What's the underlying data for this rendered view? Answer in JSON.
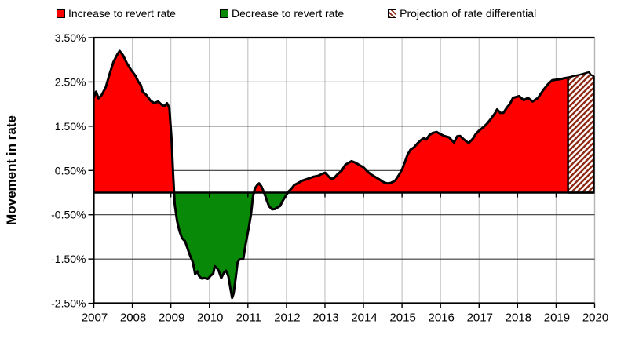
{
  "chart_data": {
    "type": "area",
    "title": "",
    "xlabel": "",
    "ylabel": "Movement in rate",
    "ylim": [
      -2.5,
      3.5
    ],
    "xlim": [
      2007,
      2020
    ],
    "grid": true,
    "legend_position": "top",
    "y_ticks": [
      {
        "value": 3.5,
        "label": "3.50%"
      },
      {
        "value": 2.5,
        "label": "2.50%"
      },
      {
        "value": 1.5,
        "label": "1.50%"
      },
      {
        "value": 0.5,
        "label": "0.50%"
      },
      {
        "value": -0.5,
        "label": "-0.50%"
      },
      {
        "value": -1.5,
        "label": "-1.50%"
      },
      {
        "value": -2.5,
        "label": "-2.50%"
      }
    ],
    "x_ticks": [
      "2007",
      "2008",
      "2009",
      "2010",
      "2011",
      "2012",
      "2013",
      "2014",
      "2015",
      "2016",
      "2017",
      "2018",
      "2019",
      "2020"
    ],
    "legend": [
      {
        "label": "Increase to revert rate",
        "swatch": "solid",
        "color": "#FF0000"
      },
      {
        "label": "Decrease to revert rate",
        "swatch": "solid",
        "color": "#088A08"
      },
      {
        "label": "Projection of rate differential",
        "swatch": "hatch",
        "color": "#8F2A15"
      }
    ],
    "colors": {
      "increase": "#FF0000",
      "decrease": "#088A08",
      "projection_stripe": "#8F2A15",
      "line": "#000000",
      "h_grid": "#3a3a3a",
      "v_grid": "#c6c6c6"
    },
    "series": [
      {
        "name": "Rate differential (actual)",
        "points": [
          [
            2007.0,
            2.15
          ],
          [
            2007.06,
            2.28
          ],
          [
            2007.12,
            2.13
          ],
          [
            2007.2,
            2.2
          ],
          [
            2007.31,
            2.38
          ],
          [
            2007.41,
            2.68
          ],
          [
            2007.51,
            2.95
          ],
          [
            2007.61,
            3.12
          ],
          [
            2007.67,
            3.2
          ],
          [
            2007.76,
            3.1
          ],
          [
            2007.86,
            2.92
          ],
          [
            2007.96,
            2.78
          ],
          [
            2008.08,
            2.64
          ],
          [
            2008.16,
            2.5
          ],
          [
            2008.22,
            2.43
          ],
          [
            2008.27,
            2.28
          ],
          [
            2008.37,
            2.2
          ],
          [
            2008.47,
            2.08
          ],
          [
            2008.57,
            2.02
          ],
          [
            2008.67,
            2.06
          ],
          [
            2008.78,
            1.97
          ],
          [
            2008.84,
            1.96
          ],
          [
            2008.9,
            2.02
          ],
          [
            2008.96,
            1.92
          ],
          [
            2009.02,
            1.2
          ],
          [
            2009.06,
            0.4
          ],
          [
            2009.1,
            -0.27
          ],
          [
            2009.16,
            -0.63
          ],
          [
            2009.22,
            -0.86
          ],
          [
            2009.29,
            -1.03
          ],
          [
            2009.37,
            -1.1
          ],
          [
            2009.45,
            -1.3
          ],
          [
            2009.51,
            -1.45
          ],
          [
            2009.57,
            -1.57
          ],
          [
            2009.63,
            -1.84
          ],
          [
            2009.69,
            -1.78
          ],
          [
            2009.73,
            -1.88
          ],
          [
            2009.8,
            -1.94
          ],
          [
            2009.88,
            -1.93
          ],
          [
            2009.96,
            -1.95
          ],
          [
            2010.04,
            -1.87
          ],
          [
            2010.1,
            -1.83
          ],
          [
            2010.14,
            -1.66
          ],
          [
            2010.2,
            -1.71
          ],
          [
            2010.24,
            -1.76
          ],
          [
            2010.31,
            -1.93
          ],
          [
            2010.37,
            -1.82
          ],
          [
            2010.43,
            -1.76
          ],
          [
            2010.49,
            -1.88
          ],
          [
            2010.55,
            -2.18
          ],
          [
            2010.59,
            -2.38
          ],
          [
            2010.63,
            -2.28
          ],
          [
            2010.69,
            -1.88
          ],
          [
            2010.73,
            -1.58
          ],
          [
            2010.78,
            -1.51
          ],
          [
            2010.88,
            -1.5
          ],
          [
            2010.94,
            -1.17
          ],
          [
            2011.02,
            -0.8
          ],
          [
            2011.08,
            -0.5
          ],
          [
            2011.13,
            -0.1
          ],
          [
            2011.18,
            0.09
          ],
          [
            2011.24,
            0.17
          ],
          [
            2011.29,
            0.21
          ],
          [
            2011.35,
            0.14
          ],
          [
            2011.43,
            -0.02
          ],
          [
            2011.49,
            -0.18
          ],
          [
            2011.55,
            -0.31
          ],
          [
            2011.63,
            -0.38
          ],
          [
            2011.7,
            -0.37
          ],
          [
            2011.76,
            -0.34
          ],
          [
            2011.84,
            -0.3
          ],
          [
            2011.9,
            -0.19
          ],
          [
            2011.98,
            -0.08
          ],
          [
            2012.06,
            0.03
          ],
          [
            2012.14,
            0.1
          ],
          [
            2012.2,
            0.17
          ],
          [
            2012.31,
            0.22
          ],
          [
            2012.41,
            0.27
          ],
          [
            2012.51,
            0.3
          ],
          [
            2012.61,
            0.33
          ],
          [
            2012.71,
            0.36
          ],
          [
            2012.82,
            0.38
          ],
          [
            2012.92,
            0.42
          ],
          [
            2013.0,
            0.45
          ],
          [
            2013.08,
            0.38
          ],
          [
            2013.16,
            0.31
          ],
          [
            2013.24,
            0.33
          ],
          [
            2013.33,
            0.42
          ],
          [
            2013.43,
            0.49
          ],
          [
            2013.53,
            0.63
          ],
          [
            2013.63,
            0.68
          ],
          [
            2013.69,
            0.71
          ],
          [
            2013.78,
            0.68
          ],
          [
            2013.88,
            0.63
          ],
          [
            2014.0,
            0.57
          ],
          [
            2014.1,
            0.48
          ],
          [
            2014.2,
            0.41
          ],
          [
            2014.31,
            0.35
          ],
          [
            2014.41,
            0.3
          ],
          [
            2014.51,
            0.24
          ],
          [
            2014.61,
            0.21
          ],
          [
            2014.71,
            0.22
          ],
          [
            2014.82,
            0.27
          ],
          [
            2014.92,
            0.4
          ],
          [
            2015.0,
            0.52
          ],
          [
            2015.08,
            0.7
          ],
          [
            2015.14,
            0.85
          ],
          [
            2015.22,
            0.97
          ],
          [
            2015.31,
            1.02
          ],
          [
            2015.41,
            1.12
          ],
          [
            2015.51,
            1.2
          ],
          [
            2015.57,
            1.23
          ],
          [
            2015.63,
            1.2
          ],
          [
            2015.71,
            1.3
          ],
          [
            2015.8,
            1.35
          ],
          [
            2015.9,
            1.37
          ],
          [
            2016.0,
            1.32
          ],
          [
            2016.1,
            1.28
          ],
          [
            2016.22,
            1.25
          ],
          [
            2016.35,
            1.13
          ],
          [
            2016.43,
            1.27
          ],
          [
            2016.51,
            1.28
          ],
          [
            2016.61,
            1.2
          ],
          [
            2016.73,
            1.12
          ],
          [
            2016.84,
            1.22
          ],
          [
            2016.92,
            1.33
          ],
          [
            2017.0,
            1.4
          ],
          [
            2017.1,
            1.47
          ],
          [
            2017.2,
            1.55
          ],
          [
            2017.31,
            1.67
          ],
          [
            2017.41,
            1.79
          ],
          [
            2017.47,
            1.88
          ],
          [
            2017.55,
            1.8
          ],
          [
            2017.63,
            1.8
          ],
          [
            2017.73,
            1.93
          ],
          [
            2017.8,
            2.0
          ],
          [
            2017.88,
            2.14
          ],
          [
            2017.96,
            2.16
          ],
          [
            2018.04,
            2.18
          ],
          [
            2018.16,
            2.09
          ],
          [
            2018.27,
            2.14
          ],
          [
            2018.39,
            2.06
          ],
          [
            2018.53,
            2.14
          ],
          [
            2018.67,
            2.32
          ],
          [
            2018.8,
            2.46
          ],
          [
            2018.9,
            2.54
          ],
          [
            2019.0,
            2.55
          ],
          [
            2019.1,
            2.56
          ],
          [
            2019.2,
            2.58
          ],
          [
            2019.31,
            2.6
          ]
        ]
      },
      {
        "name": "Projection of rate differential",
        "points": [
          [
            2019.31,
            2.6
          ],
          [
            2019.39,
            2.62
          ],
          [
            2019.49,
            2.64
          ],
          [
            2019.59,
            2.66
          ],
          [
            2019.69,
            2.68
          ],
          [
            2019.8,
            2.71
          ],
          [
            2019.86,
            2.72
          ],
          [
            2019.9,
            2.66
          ],
          [
            2019.96,
            2.64
          ],
          [
            2019.98,
            2.62
          ]
        ]
      }
    ]
  }
}
